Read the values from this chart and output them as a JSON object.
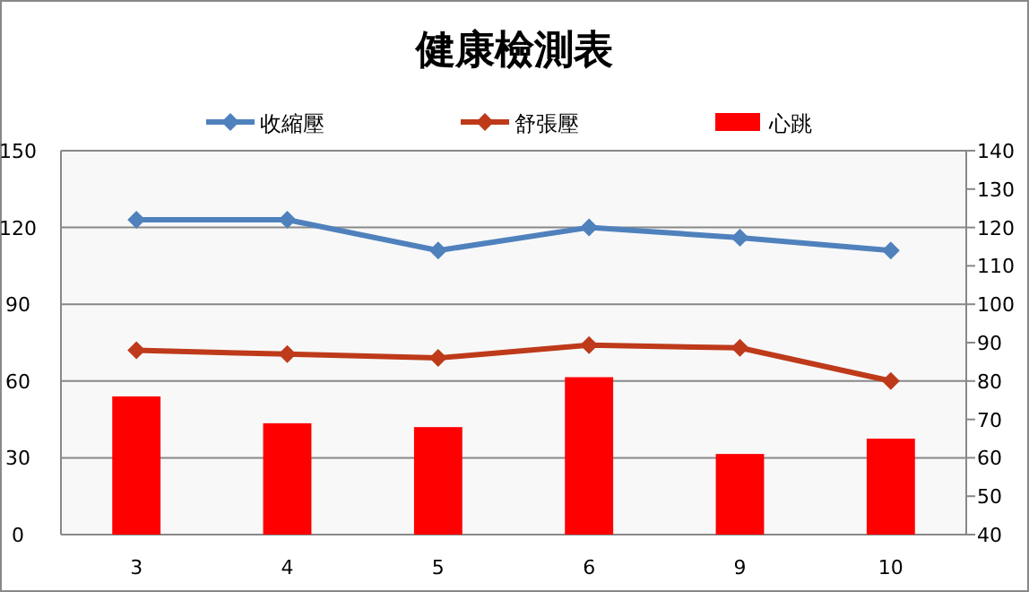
{
  "chart_data": {
    "type": "line",
    "title": "健康檢測表",
    "categories": [
      "3",
      "4",
      "5",
      "6",
      "9",
      "10"
    ],
    "series": [
      {
        "name": "收縮壓",
        "color": "#4f81bd",
        "values": [
          123,
          123,
          111,
          120,
          116,
          111
        ]
      },
      {
        "name": "舒張壓",
        "color": "#be3a1a",
        "values": [
          72,
          70.5,
          69,
          74,
          73,
          60
        ]
      },
      {
        "name": "心跳",
        "type": "bar",
        "axis": "y2",
        "color": "#ff0000",
        "values": [
          76,
          69,
          68,
          81,
          61,
          65
        ]
      }
    ],
    "ylim": [
      0,
      150
    ],
    "yticks": [
      0,
      30,
      60,
      90,
      120,
      150
    ],
    "y2lim": [
      40,
      140
    ],
    "y2ticks": [
      40,
      50,
      60,
      70,
      80,
      90,
      100,
      110,
      120,
      130,
      140
    ],
    "grid": "y",
    "legend": "top",
    "marker": "diamond"
  }
}
